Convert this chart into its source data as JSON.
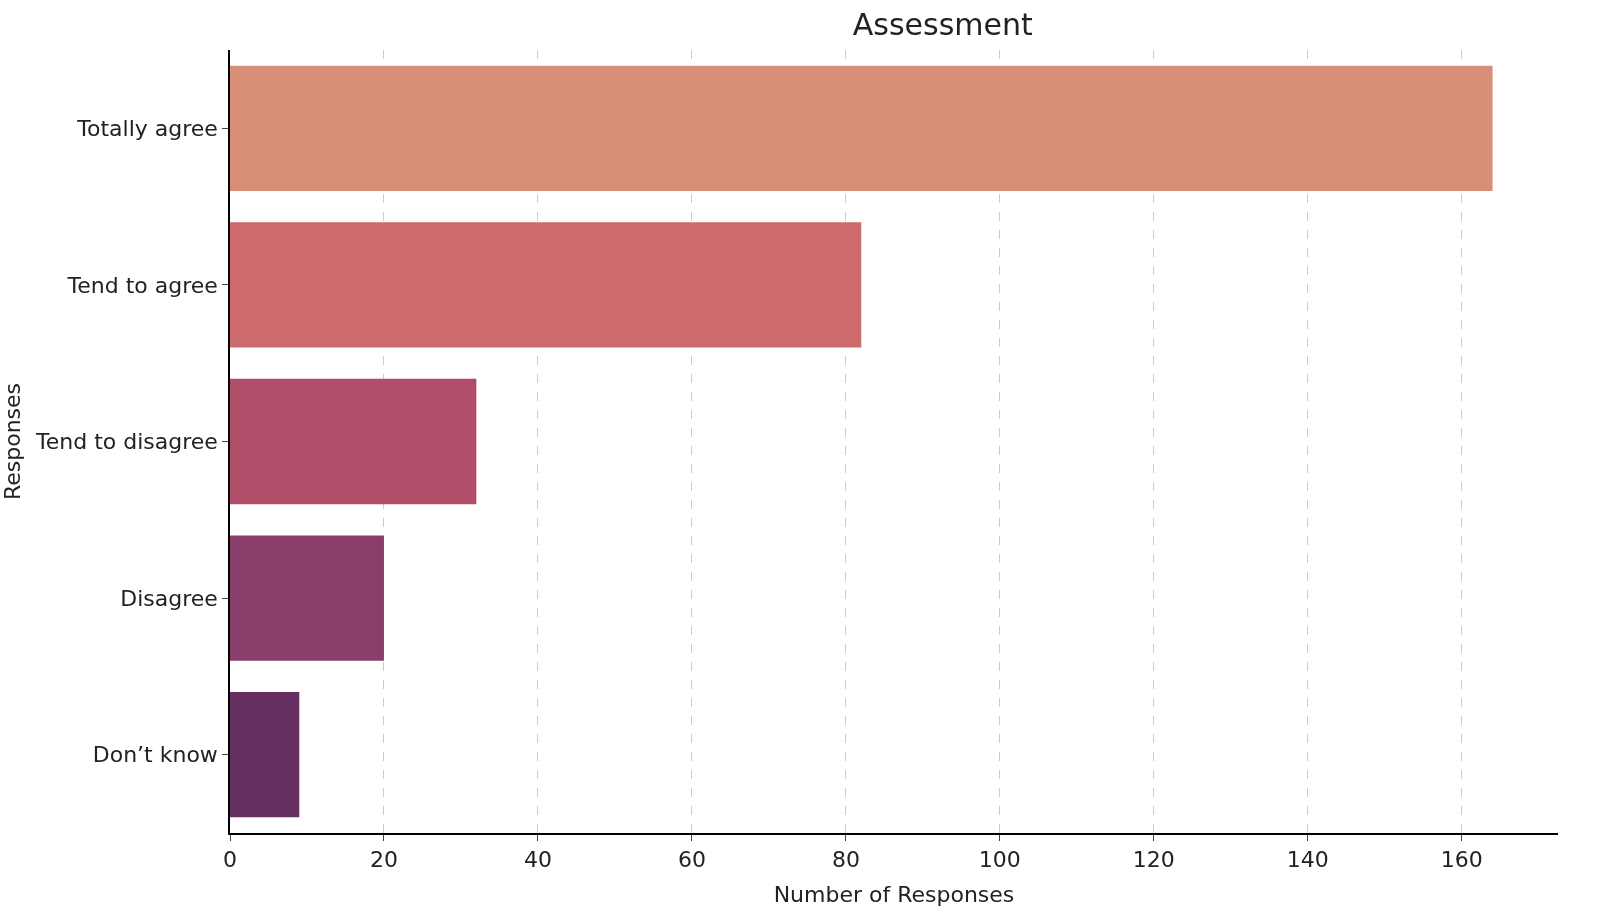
{
  "chart_data": {
    "type": "bar",
    "orientation": "horizontal",
    "title": "Assessment",
    "xlabel": "Number of Responses",
    "ylabel": "Responses",
    "categories": [
      "Totally agree",
      "Tend to agree",
      "Tend to disagree",
      "Disagree",
      "Don’t know"
    ],
    "values": [
      164,
      82,
      32,
      20,
      9
    ],
    "colors": [
      "#d98e78",
      "#cd6a6b",
      "#b04e69",
      "#8a3f6a",
      "#65305f"
    ],
    "xlim": [
      0,
      172.5
    ],
    "xticks": [
      0,
      20,
      40,
      60,
      80,
      100,
      120,
      140,
      160
    ],
    "grid": "x"
  }
}
